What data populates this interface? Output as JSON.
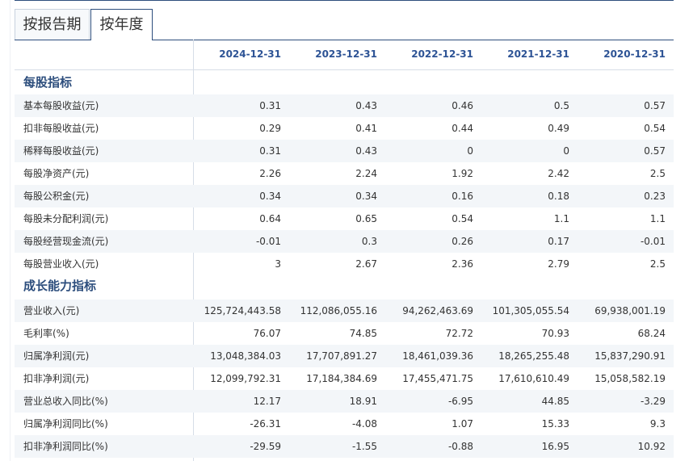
{
  "tabs": [
    "按报告期",
    "按年度"
  ],
  "periods": [
    "2024-12-31",
    "2023-12-31",
    "2022-12-31",
    "2021-12-31",
    "2020-12-31"
  ],
  "sections": [
    {
      "title": "每股指标",
      "rows": [
        {
          "label": "基本每股收益(元)",
          "values": [
            "0.31",
            "0.43",
            "0.46",
            "0.5",
            "0.57"
          ]
        },
        {
          "label": "扣非每股收益(元)",
          "values": [
            "0.29",
            "0.41",
            "0.44",
            "0.49",
            "0.54"
          ]
        },
        {
          "label": "稀释每股收益(元)",
          "values": [
            "0.31",
            "0.43",
            "0",
            "0",
            "0.57"
          ]
        },
        {
          "label": "每股净资产(元)",
          "values": [
            "2.26",
            "2.24",
            "1.92",
            "2.42",
            "2.5"
          ]
        },
        {
          "label": "每股公积金(元)",
          "values": [
            "0.34",
            "0.34",
            "0.16",
            "0.18",
            "0.23"
          ]
        },
        {
          "label": "每股未分配利润(元)",
          "values": [
            "0.64",
            "0.65",
            "0.54",
            "1.1",
            "1.1"
          ]
        },
        {
          "label": "每股经营现金流(元)",
          "values": [
            "-0.01",
            "0.3",
            "0.26",
            "0.17",
            "-0.01"
          ]
        },
        {
          "label": "每股营业收入(元)",
          "values": [
            "3",
            "2.67",
            "2.36",
            "2.79",
            "2.5"
          ]
        }
      ]
    },
    {
      "title": "成长能力指标",
      "rows": [
        {
          "label": "营业收入(元)",
          "values": [
            "125,724,443.58",
            "112,086,055.16",
            "94,262,463.69",
            "101,305,055.54",
            "69,938,001.19"
          ]
        },
        {
          "label": "毛利率(%)",
          "values": [
            "76.07",
            "74.85",
            "72.72",
            "70.93",
            "68.24"
          ]
        },
        {
          "label": "归属净利润(元)",
          "values": [
            "13,048,384.03",
            "17,707,891.27",
            "18,461,039.36",
            "18,265,255.48",
            "15,837,290.91"
          ]
        },
        {
          "label": "扣非净利润(元)",
          "values": [
            "12,099,792.31",
            "17,184,384.69",
            "17,455,471.75",
            "17,610,610.49",
            "15,058,582.19"
          ]
        },
        {
          "label": "营业总收入同比(%)",
          "values": [
            "12.17",
            "18.91",
            "-6.95",
            "44.85",
            "-3.29"
          ]
        },
        {
          "label": "归属净利润同比(%)",
          "values": [
            "-26.31",
            "-4.08",
            "1.07",
            "15.33",
            "9.3"
          ]
        },
        {
          "label": "扣非净利润同比(%)",
          "values": [
            "-29.59",
            "-1.55",
            "-0.88",
            "16.95",
            "10.92"
          ]
        }
      ]
    }
  ]
}
